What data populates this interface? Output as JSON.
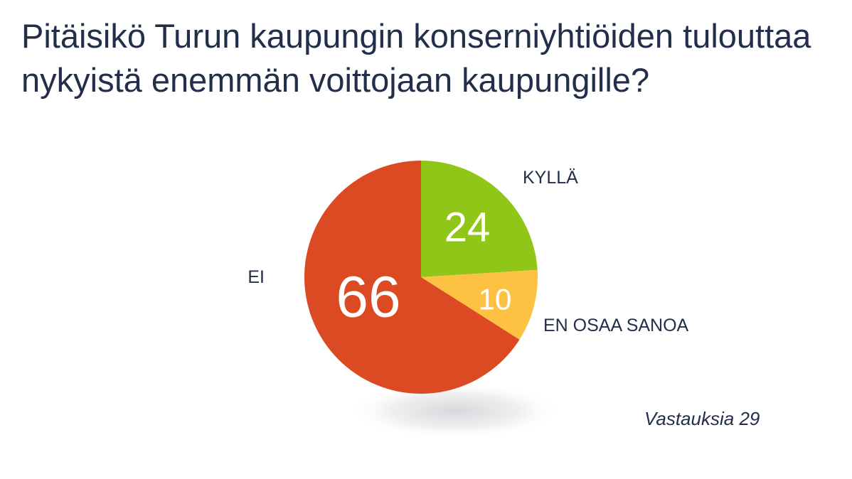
{
  "title": "Pitäisikö Turun kaupungin konserniyhtiöiden tulouttaa nykyistä enemmän voittojaan kaupungille?",
  "note": "Vastauksia 29",
  "chart_data": {
    "type": "pie",
    "title": "Pitäisikö Turun kaupungin konserniyhtiöiden tulouttaa nykyistä enemmän voittojaan kaupungille?",
    "slices": [
      {
        "label": "KYLLÄ",
        "value": 24,
        "value_label": "24",
        "color": "#8fc618"
      },
      {
        "label": "EN OSAA SANOA",
        "value": 10,
        "value_label": "10",
        "color": "#fdc242"
      },
      {
        "label": "EI",
        "value": 66,
        "value_label": "66",
        "color": "#dc4a23"
      }
    ],
    "start_angle": "12 o'clock",
    "direction": "clockwise",
    "legend": "none (labels beside slices)"
  }
}
